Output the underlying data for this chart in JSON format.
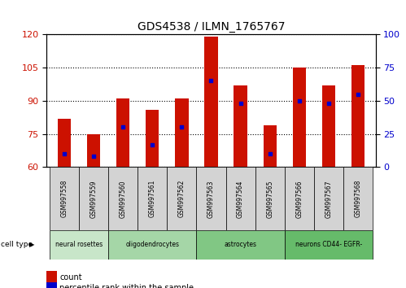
{
  "title": "GDS4538 / ILMN_1765767",
  "samples": [
    "GSM997558",
    "GSM997559",
    "GSM997560",
    "GSM997561",
    "GSM997562",
    "GSM997563",
    "GSM997564",
    "GSM997565",
    "GSM997566",
    "GSM997567",
    "GSM997568"
  ],
  "counts": [
    82,
    75,
    91,
    86,
    91,
    119,
    97,
    79,
    105,
    97,
    106
  ],
  "percentiles": [
    10,
    8,
    30,
    17,
    30,
    65,
    48,
    10,
    50,
    48,
    55
  ],
  "ylim_left": [
    60,
    120
  ],
  "ylim_right": [
    0,
    100
  ],
  "yticks_left": [
    60,
    75,
    90,
    105,
    120
  ],
  "yticks_right": [
    0,
    25,
    50,
    75,
    100
  ],
  "cell_types": [
    {
      "label": "neural rosettes",
      "start": 0,
      "end": 2,
      "color": "#c8e6c9"
    },
    {
      "label": "oligodendrocytes",
      "start": 2,
      "end": 5,
      "color": "#a5d6a7"
    },
    {
      "label": "astrocytes",
      "start": 5,
      "end": 8,
      "color": "#81c784"
    },
    {
      "label": "neurons CD44- EGFR-",
      "start": 8,
      "end": 11,
      "color": "#66bb6a"
    }
  ],
  "bar_color": "#cc1100",
  "percentile_color": "#0000cc",
  "bar_width": 0.45,
  "tick_label_color_left": "#cc1100",
  "tick_label_color_right": "#0000cc",
  "background_color": "#ffffff",
  "plot_bg_color": "#ffffff",
  "grid_color": "#000000",
  "xtick_bg_color": "#d3d3d3",
  "legend_square_color_red": "#cc1100",
  "legend_square_color_blue": "#0000cc"
}
